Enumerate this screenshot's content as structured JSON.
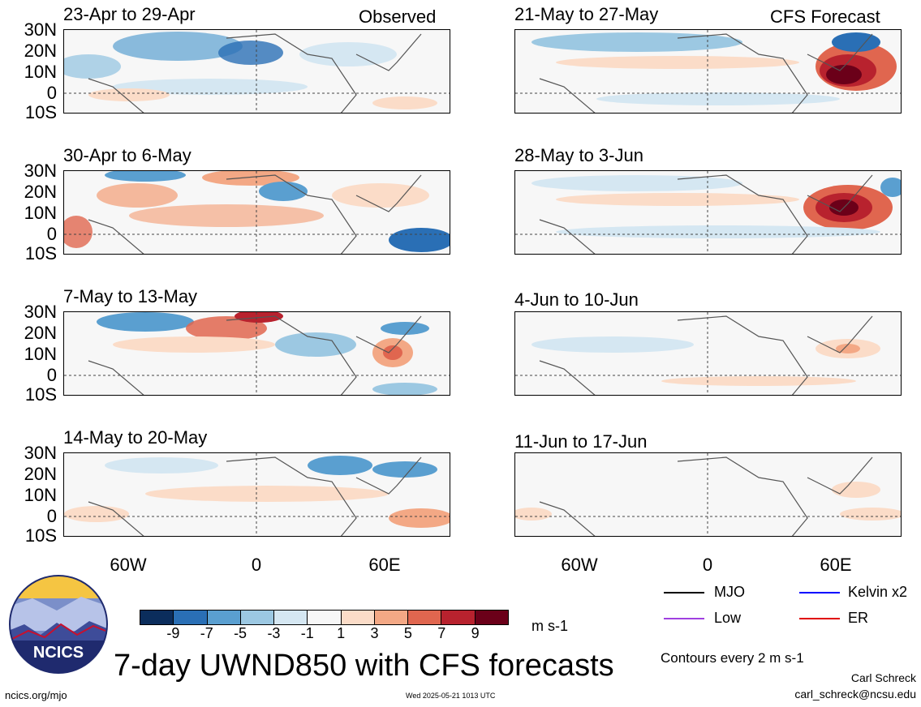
{
  "panels_left": [
    {
      "title": "23-Apr to 29-Apr",
      "tag": "Observed"
    },
    {
      "title": "30-Apr to 6-May",
      "tag": ""
    },
    {
      "title": "7-May to 13-May",
      "tag": ""
    },
    {
      "title": "14-May to 20-May",
      "tag": ""
    }
  ],
  "panels_right": [
    {
      "title": "21-May to 27-May",
      "tag": "CFS Forecast"
    },
    {
      "title": "28-May to 3-Jun",
      "tag": ""
    },
    {
      "title": "4-Jun to 10-Jun",
      "tag": ""
    },
    {
      "title": "11-Jun to 17-Jun",
      "tag": ""
    }
  ],
  "lat_labels": [
    "30N",
    "20N",
    "10N",
    "0",
    "10S"
  ],
  "lon_labels": [
    "60W",
    "0",
    "60E"
  ],
  "colorbar": {
    "colors": [
      "#0b2d5c",
      "#2a6fb5",
      "#5a9fd0",
      "#9cc8e2",
      "#d5e7f2",
      "#f7f7f7",
      "#fbdcc8",
      "#f3a885",
      "#e0664f",
      "#b8222e",
      "#6b0019"
    ],
    "ticks": [
      "-9",
      "-7",
      "-5",
      "-3",
      "-1",
      "1",
      "3",
      "5",
      "7",
      "9"
    ],
    "units": "m s-1"
  },
  "legend": {
    "mjo": "MJO",
    "kelvin": "Kelvin x2",
    "low": "Low",
    "er": "ER",
    "contours": "Contours every 2 m s-1"
  },
  "logo_text": "NCICS",
  "main_title": "7-day UWND850 with CFS forecasts",
  "footer": {
    "left": "ncics.org/mjo",
    "center": "Wed 2025-05-21 1013 UTC",
    "author": "Carl Schreck",
    "email": "carl_schreck@ncsu.edu"
  }
}
